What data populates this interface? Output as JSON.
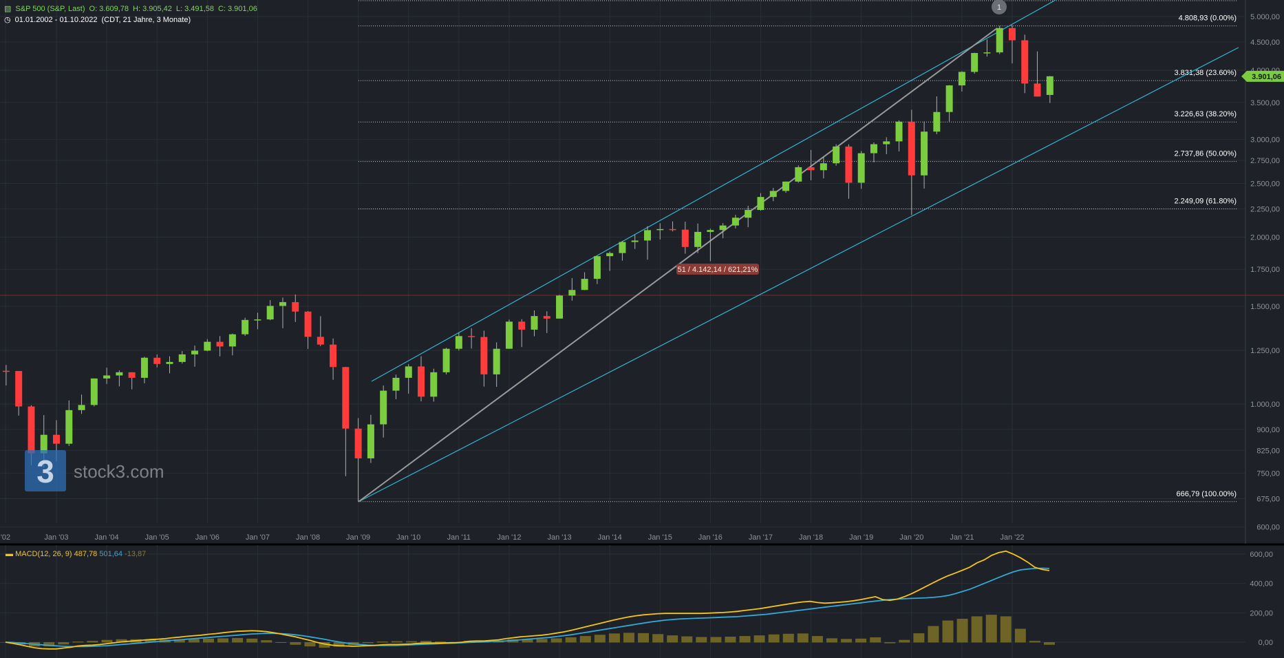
{
  "header": {
    "symbol": "S&P 500 (S&P, Last)",
    "open": "O: 3.609,78",
    "high": "H: 3.905,42",
    "low": "L: 3.491,58",
    "close": "C: 3.901,06",
    "range": "01.01.2002 - 01.10.2022",
    "range_note": "(CDT, 21 Jahre, 3 Monate)"
  },
  "macd_header": {
    "label": "MACD(12, 26, 9)",
    "macd": "487,78",
    "signal": "501,64",
    "hist": "-13,87"
  },
  "watermark": {
    "text": "stock3.com",
    "badge": "3"
  },
  "colors": {
    "up": "#7ccc3f",
    "down": "#ff3b3b",
    "channel": "#33b5d1",
    "fib": "#c8c8c8",
    "macd": "#f5c518",
    "signal": "#33a9d6",
    "hist": "#6e6425"
  },
  "price_tag": "3.901,06",
  "annotation": "51 / 4.142,14 / 621,21%",
  "event_marker": "1",
  "chart_data": {
    "type": "candlestick",
    "scale": "log",
    "ylim": [
      580,
      5500
    ],
    "yticks": [
      600,
      675,
      750,
      825,
      900,
      1000,
      1250,
      1500,
      1750,
      2000,
      2250,
      2500,
      2750,
      3000,
      3500,
      4000,
      4500,
      5000
    ],
    "ytick_labels": [
      "600,00",
      "675,00",
      "750,00",
      "825,00",
      "900,00",
      "1.000,00",
      "1.250,00",
      "1.500,00",
      "1.750,00",
      "2.000,00",
      "2.250,00",
      "2.500,00",
      "2.750,00",
      "3.000,00",
      "3.500,00",
      "4.000,00",
      "4.500,00",
      "5.000,00"
    ],
    "xticks": [
      "'02",
      "Jan '03",
      "Jan '04",
      "Jan '05",
      "Jan '06",
      "Jan '07",
      "Jan '08",
      "Jan '09",
      "Jan '10",
      "Jan '11",
      "Jan '12",
      "Jan '13",
      "Jan '14",
      "Jan '15",
      "Jan '16",
      "Jan '17",
      "Jan '18",
      "Jan '19",
      "Jan '20",
      "Jan '21",
      "Jan '22"
    ],
    "period": "quarterly",
    "candles": [
      {
        "t": "2002-Q1",
        "o": 1148,
        "h": 1176,
        "l": 1080,
        "c": 1147
      },
      {
        "t": "2002-Q2",
        "o": 1147,
        "h": 1147,
        "l": 953,
        "c": 990
      },
      {
        "t": "2002-Q3",
        "o": 990,
        "h": 995,
        "l": 775,
        "c": 815
      },
      {
        "t": "2002-Q4",
        "o": 815,
        "h": 955,
        "l": 768,
        "c": 880
      },
      {
        "t": "2003-Q1",
        "o": 880,
        "h": 935,
        "l": 788,
        "c": 848
      },
      {
        "t": "2003-Q2",
        "o": 848,
        "h": 1015,
        "l": 840,
        "c": 975
      },
      {
        "t": "2003-Q3",
        "o": 975,
        "h": 1040,
        "l": 960,
        "c": 996
      },
      {
        "t": "2003-Q4",
        "o": 996,
        "h": 1112,
        "l": 990,
        "c": 1112
      },
      {
        "t": "2004-Q1",
        "o": 1112,
        "h": 1163,
        "l": 1087,
        "c": 1126
      },
      {
        "t": "2004-Q2",
        "o": 1126,
        "h": 1150,
        "l": 1076,
        "c": 1141
      },
      {
        "t": "2004-Q3",
        "o": 1141,
        "h": 1141,
        "l": 1063,
        "c": 1115
      },
      {
        "t": "2004-Q4",
        "o": 1115,
        "h": 1217,
        "l": 1090,
        "c": 1212
      },
      {
        "t": "2005-Q1",
        "o": 1212,
        "h": 1229,
        "l": 1164,
        "c": 1181
      },
      {
        "t": "2005-Q2",
        "o": 1181,
        "h": 1219,
        "l": 1136,
        "c": 1191
      },
      {
        "t": "2005-Q3",
        "o": 1191,
        "h": 1246,
        "l": 1183,
        "c": 1229
      },
      {
        "t": "2005-Q4",
        "o": 1229,
        "h": 1275,
        "l": 1168,
        "c": 1248
      },
      {
        "t": "2006-Q1",
        "o": 1248,
        "h": 1310,
        "l": 1245,
        "c": 1295
      },
      {
        "t": "2006-Q2",
        "o": 1295,
        "h": 1326,
        "l": 1219,
        "c": 1270
      },
      {
        "t": "2006-Q3",
        "o": 1270,
        "h": 1340,
        "l": 1224,
        "c": 1336
      },
      {
        "t": "2006-Q4",
        "o": 1336,
        "h": 1431,
        "l": 1327,
        "c": 1418
      },
      {
        "t": "2007-Q1",
        "o": 1418,
        "h": 1461,
        "l": 1364,
        "c": 1421
      },
      {
        "t": "2007-Q2",
        "o": 1421,
        "h": 1540,
        "l": 1416,
        "c": 1503
      },
      {
        "t": "2007-Q3",
        "o": 1503,
        "h": 1556,
        "l": 1370,
        "c": 1527
      },
      {
        "t": "2007-Q4",
        "o": 1527,
        "h": 1576,
        "l": 1406,
        "c": 1468
      },
      {
        "t": "2008-Q1",
        "o": 1468,
        "h": 1471,
        "l": 1257,
        "c": 1322
      },
      {
        "t": "2008-Q2",
        "o": 1322,
        "h": 1440,
        "l": 1272,
        "c": 1280
      },
      {
        "t": "2008-Q3",
        "o": 1280,
        "h": 1313,
        "l": 1106,
        "c": 1166
      },
      {
        "t": "2008-Q4",
        "o": 1166,
        "h": 1167,
        "l": 741,
        "c": 903
      },
      {
        "t": "2009-Q1",
        "o": 903,
        "h": 943,
        "l": 667,
        "c": 798
      },
      {
        "t": "2009-Q2",
        "o": 798,
        "h": 956,
        "l": 783,
        "c": 919
      },
      {
        "t": "2009-Q3",
        "o": 919,
        "h": 1080,
        "l": 870,
        "c": 1057
      },
      {
        "t": "2009-Q4",
        "o": 1057,
        "h": 1130,
        "l": 1020,
        "c": 1115
      },
      {
        "t": "2010-Q1",
        "o": 1115,
        "h": 1180,
        "l": 1044,
        "c": 1169
      },
      {
        "t": "2010-Q2",
        "o": 1169,
        "h": 1220,
        "l": 1011,
        "c": 1031
      },
      {
        "t": "2010-Q3",
        "o": 1031,
        "h": 1158,
        "l": 1010,
        "c": 1141
      },
      {
        "t": "2010-Q4",
        "o": 1141,
        "h": 1263,
        "l": 1131,
        "c": 1258
      },
      {
        "t": "2011-Q1",
        "o": 1258,
        "h": 1344,
        "l": 1249,
        "c": 1326
      },
      {
        "t": "2011-Q2",
        "o": 1326,
        "h": 1370,
        "l": 1259,
        "c": 1321
      },
      {
        "t": "2011-Q3",
        "o": 1321,
        "h": 1356,
        "l": 1075,
        "c": 1131
      },
      {
        "t": "2011-Q4",
        "o": 1131,
        "h": 1292,
        "l": 1074,
        "c": 1258
      },
      {
        "t": "2012-Q1",
        "o": 1258,
        "h": 1420,
        "l": 1258,
        "c": 1408
      },
      {
        "t": "2012-Q2",
        "o": 1408,
        "h": 1422,
        "l": 1267,
        "c": 1362
      },
      {
        "t": "2012-Q3",
        "o": 1362,
        "h": 1475,
        "l": 1325,
        "c": 1441
      },
      {
        "t": "2012-Q4",
        "o": 1441,
        "h": 1470,
        "l": 1343,
        "c": 1426
      },
      {
        "t": "2013-Q1",
        "o": 1426,
        "h": 1574,
        "l": 1426,
        "c": 1569
      },
      {
        "t": "2013-Q2",
        "o": 1569,
        "h": 1687,
        "l": 1536,
        "c": 1606
      },
      {
        "t": "2013-Q3",
        "o": 1606,
        "h": 1729,
        "l": 1604,
        "c": 1682
      },
      {
        "t": "2013-Q4",
        "o": 1682,
        "h": 1849,
        "l": 1646,
        "c": 1848
      },
      {
        "t": "2014-Q1",
        "o": 1848,
        "h": 1884,
        "l": 1738,
        "c": 1872
      },
      {
        "t": "2014-Q2",
        "o": 1872,
        "h": 1968,
        "l": 1814,
        "c": 1960
      },
      {
        "t": "2014-Q3",
        "o": 1960,
        "h": 2019,
        "l": 1904,
        "c": 1972
      },
      {
        "t": "2014-Q4",
        "o": 1972,
        "h": 2093,
        "l": 1821,
        "c": 2059
      },
      {
        "t": "2015-Q1",
        "o": 2059,
        "h": 2119,
        "l": 1981,
        "c": 2068
      },
      {
        "t": "2015-Q2",
        "o": 2068,
        "h": 2135,
        "l": 2048,
        "c": 2063
      },
      {
        "t": "2015-Q3",
        "o": 2063,
        "h": 2132,
        "l": 1867,
        "c": 1920
      },
      {
        "t": "2015-Q4",
        "o": 1920,
        "h": 2116,
        "l": 1872,
        "c": 2044
      },
      {
        "t": "2016-Q1",
        "o": 2044,
        "h": 2072,
        "l": 1810,
        "c": 2060
      },
      {
        "t": "2016-Q2",
        "o": 2060,
        "h": 2120,
        "l": 1991,
        "c": 2099
      },
      {
        "t": "2016-Q3",
        "o": 2099,
        "h": 2194,
        "l": 2074,
        "c": 2168
      },
      {
        "t": "2016-Q4",
        "o": 2168,
        "h": 2278,
        "l": 2084,
        "c": 2239
      },
      {
        "t": "2017-Q1",
        "o": 2239,
        "h": 2401,
        "l": 2233,
        "c": 2363
      },
      {
        "t": "2017-Q2",
        "o": 2363,
        "h": 2454,
        "l": 2322,
        "c": 2423
      },
      {
        "t": "2017-Q3",
        "o": 2423,
        "h": 2519,
        "l": 2405,
        "c": 2519
      },
      {
        "t": "2017-Q4",
        "o": 2519,
        "h": 2694,
        "l": 2508,
        "c": 2674
      },
      {
        "t": "2018-Q1",
        "o": 2674,
        "h": 2873,
        "l": 2533,
        "c": 2641
      },
      {
        "t": "2018-Q2",
        "o": 2641,
        "h": 2791,
        "l": 2553,
        "c": 2718
      },
      {
        "t": "2018-Q3",
        "o": 2718,
        "h": 2941,
        "l": 2691,
        "c": 2914
      },
      {
        "t": "2018-Q4",
        "o": 2914,
        "h": 2940,
        "l": 2346,
        "c": 2507
      },
      {
        "t": "2019-Q1",
        "o": 2507,
        "h": 2860,
        "l": 2444,
        "c": 2834
      },
      {
        "t": "2019-Q2",
        "o": 2834,
        "h": 2964,
        "l": 2729,
        "c": 2942
      },
      {
        "t": "2019-Q3",
        "o": 2942,
        "h": 3028,
        "l": 2822,
        "c": 2977
      },
      {
        "t": "2019-Q4",
        "o": 2977,
        "h": 3248,
        "l": 2856,
        "c": 3231
      },
      {
        "t": "2020-Q1",
        "o": 3231,
        "h": 3394,
        "l": 2192,
        "c": 2585
      },
      {
        "t": "2020-Q2",
        "o": 2585,
        "h": 3234,
        "l": 2447,
        "c": 3100
      },
      {
        "t": "2020-Q3",
        "o": 3100,
        "h": 3588,
        "l": 3067,
        "c": 3363
      },
      {
        "t": "2020-Q4",
        "o": 3363,
        "h": 3760,
        "l": 3233,
        "c": 3756
      },
      {
        "t": "2021-Q1",
        "o": 3756,
        "h": 3983,
        "l": 3662,
        "c": 3973
      },
      {
        "t": "2021-Q2",
        "o": 3973,
        "h": 4302,
        "l": 3944,
        "c": 4297
      },
      {
        "t": "2021-Q3",
        "o": 4297,
        "h": 4546,
        "l": 4234,
        "c": 4308
      },
      {
        "t": "2021-Q4",
        "o": 4308,
        "h": 4809,
        "l": 4278,
        "c": 4766
      },
      {
        "t": "2022-Q1",
        "o": 4766,
        "h": 4819,
        "l": 4115,
        "c": 4530
      },
      {
        "t": "2022-Q2",
        "o": 4530,
        "h": 4637,
        "l": 3637,
        "c": 3785
      },
      {
        "t": "2022-Q3",
        "o": 3785,
        "h": 4325,
        "l": 3584,
        "c": 3586
      },
      {
        "t": "2022-Q4",
        "o": 3610,
        "h": 3905,
        "l": 3492,
        "c": 3901
      }
    ],
    "fib_levels": [
      {
        "value": 4808.93,
        "label": "4.808,93 (0.00%)"
      },
      {
        "value": 3831.38,
        "label": "3.831,38 (23.60%)"
      },
      {
        "value": 3226.63,
        "label": "3.226,63 (38.20%)"
      },
      {
        "value": 2737.86,
        "label": "2.737,86 (50.00%)"
      },
      {
        "value": 2249.09,
        "label": "2.249,09 (61.80%)"
      },
      {
        "value": 666.79,
        "label": "666,79 (100.00%)"
      }
    ],
    "macd": {
      "ylim": [
        -50,
        650
      ],
      "yticks": [
        0,
        200,
        400,
        600
      ],
      "ytick_labels": [
        "0,00",
        "200,00",
        "400,00",
        "600,00"
      ],
      "macd": [
        0,
        -8,
        -18,
        -28,
        -38,
        -44,
        -46,
        -46,
        -40,
        -34,
        -26,
        -22,
        -20,
        -16,
        -10,
        -4,
        2,
        6,
        10,
        14,
        18,
        20,
        24,
        30,
        34,
        40,
        44,
        48,
        54,
        58,
        64,
        70,
        74,
        76,
        78,
        76,
        72,
        64,
        56,
        46,
        36,
        24,
        12,
        -2,
        -12,
        -20,
        -24,
        -26,
        -28,
        -26,
        -24,
        -22,
        -18,
        -16,
        -16,
        -14,
        -12,
        -8,
        -6,
        -6,
        -6,
        -4,
        -4,
        0,
        6,
        8,
        8,
        12,
        16,
        24,
        30,
        36,
        40,
        44,
        48,
        54,
        62,
        70,
        80,
        92,
        104,
        116,
        128,
        140,
        152,
        162,
        172,
        180,
        186,
        190,
        194,
        196,
        196,
        196,
        196,
        196,
        196,
        198,
        200,
        202,
        206,
        210,
        216,
        222,
        228,
        236,
        244,
        252,
        260,
        268,
        274,
        278,
        270,
        266,
        268,
        272,
        276,
        282,
        290,
        300,
        310,
        290,
        285,
        293,
        310,
        330,
        355,
        380,
        405,
        430,
        452,
        470,
        490,
        510,
        540,
        560,
        590,
        610,
        620,
        600,
        575,
        545,
        510,
        495,
        488
      ],
      "signal": [
        0,
        -2,
        -6,
        -10,
        -14,
        -18,
        -22,
        -25,
        -28,
        -30,
        -30,
        -30,
        -28,
        -26,
        -24,
        -20,
        -16,
        -12,
        -8,
        -4,
        0,
        4,
        8,
        12,
        16,
        20,
        24,
        28,
        32,
        36,
        40,
        44,
        48,
        52,
        56,
        58,
        60,
        60,
        58,
        55,
        50,
        44,
        36,
        28,
        20,
        10,
        2,
        -6,
        -12,
        -16,
        -20,
        -22,
        -22,
        -22,
        -22,
        -20,
        -18,
        -16,
        -14,
        -12,
        -10,
        -8,
        -6,
        -4,
        -2,
        0,
        2,
        4,
        6,
        8,
        12,
        16,
        20,
        24,
        28,
        32,
        38,
        44,
        50,
        58,
        66,
        74,
        82,
        90,
        98,
        106,
        114,
        122,
        130,
        138,
        144,
        150,
        154,
        158,
        160,
        162,
        164,
        166,
        168,
        170,
        172,
        174,
        178,
        182,
        186,
        190,
        196,
        202,
        208,
        214,
        220,
        226,
        232,
        238,
        244,
        250,
        256,
        262,
        268,
        274,
        280,
        285,
        290,
        293,
        296,
        298,
        300,
        302,
        305,
        310,
        318,
        330,
        345,
        360,
        380,
        400,
        420,
        440,
        460,
        478,
        492,
        498,
        502,
        504,
        502
      ]
    }
  }
}
